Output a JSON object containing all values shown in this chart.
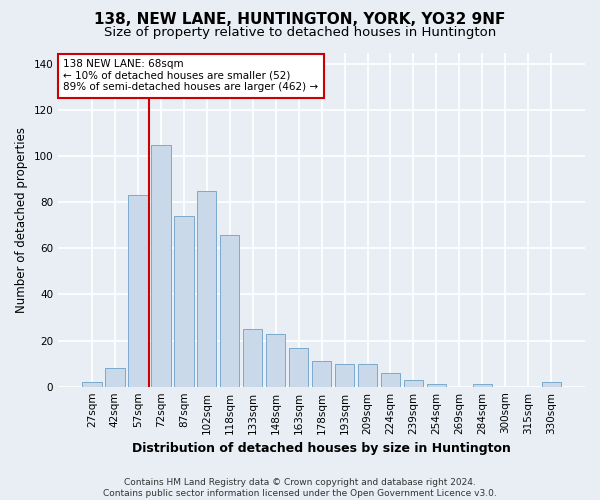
{
  "title": "138, NEW LANE, HUNTINGTON, YORK, YO32 9NF",
  "subtitle": "Size of property relative to detached houses in Huntington",
  "xlabel": "Distribution of detached houses by size in Huntington",
  "ylabel": "Number of detached properties",
  "footer_line1": "Contains HM Land Registry data © Crown copyright and database right 2024.",
  "footer_line2": "Contains public sector information licensed under the Open Government Licence v3.0.",
  "categories": [
    "27sqm",
    "42sqm",
    "57sqm",
    "72sqm",
    "87sqm",
    "102sqm",
    "118sqm",
    "133sqm",
    "148sqm",
    "163sqm",
    "178sqm",
    "193sqm",
    "209sqm",
    "224sqm",
    "239sqm",
    "254sqm",
    "269sqm",
    "284sqm",
    "300sqm",
    "315sqm",
    "330sqm"
  ],
  "values": [
    2,
    8,
    83,
    105,
    74,
    85,
    66,
    25,
    23,
    17,
    11,
    10,
    10,
    6,
    3,
    1,
    0,
    1,
    0,
    0,
    2
  ],
  "bar_color": "#c9d9ea",
  "bar_edge_color": "#7aaacc",
  "annotation_text": "138 NEW LANE: 68sqm\n← 10% of detached houses are smaller (52)\n89% of semi-detached houses are larger (462) →",
  "vline_x_index": 2.5,
  "vline_color": "#cc0000",
  "annotation_box_facecolor": "#ffffff",
  "annotation_box_edgecolor": "#cc0000",
  "ylim": [
    0,
    145
  ],
  "yticks": [
    0,
    20,
    40,
    60,
    80,
    100,
    120,
    140
  ],
  "background_color": "#e8eef4",
  "grid_color": "#ffffff",
  "title_fontsize": 11,
  "subtitle_fontsize": 9.5,
  "xlabel_fontsize": 9,
  "ylabel_fontsize": 8.5,
  "tick_fontsize": 7.5,
  "annotation_fontsize": 7.5,
  "footer_fontsize": 6.5
}
